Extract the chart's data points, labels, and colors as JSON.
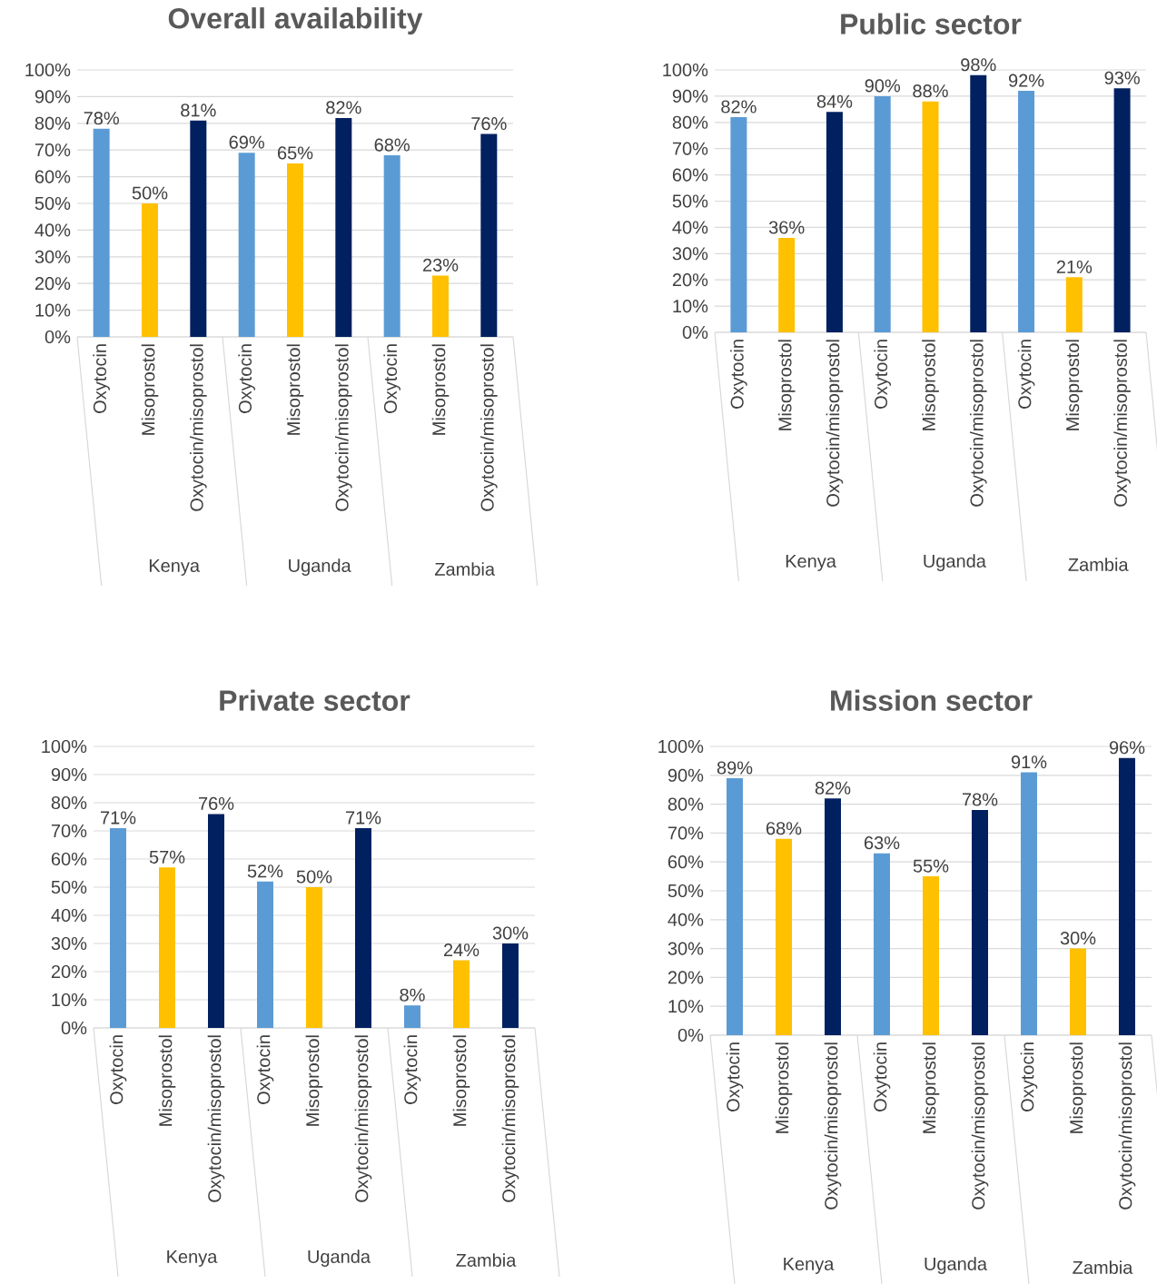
{
  "chart_data": [
    {
      "type": "bar",
      "title": "Overall availability",
      "categories": [
        "Oxytocin",
        "Misoprostol",
        "Oxytocin/misoprostol",
        "Oxytocin",
        "Misoprostol",
        "Oxytocin/misoprostol",
        "Oxytocin",
        "Misoprostol",
        "Oxytocin/misoprostol"
      ],
      "values": [
        78,
        50,
        81,
        69,
        65,
        82,
        68,
        23,
        76
      ],
      "value_labels": [
        "78%",
        "50%",
        "81%",
        "69%",
        "65%",
        "82%",
        "68%",
        "23%",
        "76%"
      ],
      "colors": [
        "#5b9bd5",
        "#ffc000",
        "#002060",
        "#5b9bd5",
        "#ffc000",
        "#002060",
        "#5b9bd5",
        "#ffc000",
        "#002060"
      ],
      "annotations": [
        "Kenya",
        "Uganda",
        "Zambia"
      ],
      "ylim": [
        0,
        100
      ],
      "yticks": [
        {
          "value": 0,
          "label": "0%"
        },
        {
          "value": 10,
          "label": "10%"
        },
        {
          "value": 20,
          "label": "20%"
        },
        {
          "value": 30,
          "label": "30%"
        },
        {
          "value": 40,
          "label": "40%"
        },
        {
          "value": 50,
          "label": "50%"
        },
        {
          "value": 60,
          "label": "60%"
        },
        {
          "value": 70,
          "label": "70%"
        },
        {
          "value": 80,
          "label": "80%"
        },
        {
          "value": 90,
          "label": "90%"
        },
        {
          "value": 100,
          "label": "100%"
        }
      ],
      "grid": "y"
    },
    {
      "type": "bar",
      "title": "Public sector",
      "categories": [
        "Oxytocin",
        "Misoprostol",
        "Oxytocin/misoprostol",
        "Oxytocin",
        "Misoprostol",
        "Oxytocin/misoprostol",
        "Oxytocin",
        "Misoprostol",
        "Oxytocin/misoprostol"
      ],
      "values": [
        82,
        36,
        84,
        90,
        88,
        98,
        92,
        21,
        93
      ],
      "value_labels": [
        "82%",
        "36%",
        "84%",
        "90%",
        "88%",
        "98%",
        "92%",
        "21%",
        "93%"
      ],
      "colors": [
        "#5b9bd5",
        "#ffc000",
        "#002060",
        "#5b9bd5",
        "#ffc000",
        "#002060",
        "#5b9bd5",
        "#ffc000",
        "#002060"
      ],
      "annotations": [
        "Kenya",
        "Uganda",
        "Zambia"
      ],
      "ylim": [
        0,
        100
      ],
      "yticks": [
        {
          "value": 0,
          "label": "0%"
        },
        {
          "value": 10,
          "label": "10%"
        },
        {
          "value": 20,
          "label": "20%"
        },
        {
          "value": 30,
          "label": "30%"
        },
        {
          "value": 40,
          "label": "40%"
        },
        {
          "value": 50,
          "label": "50%"
        },
        {
          "value": 60,
          "label": "60%"
        },
        {
          "value": 70,
          "label": "70%"
        },
        {
          "value": 80,
          "label": "80%"
        },
        {
          "value": 90,
          "label": "90%"
        },
        {
          "value": 100,
          "label": "100%"
        }
      ],
      "grid": "y"
    },
    {
      "type": "bar",
      "title": "Private sector",
      "categories": [
        "Oxytocin",
        "Misoprostol",
        "Oxytocin/misoprostol",
        "Oxytocin",
        "Misoprostol",
        "Oxytocin/misoprostol",
        "Oxytocin",
        "Misoprostol",
        "Oxytocin/misoprostol"
      ],
      "values": [
        71,
        57,
        76,
        52,
        50,
        71,
        8,
        24,
        30
      ],
      "value_labels": [
        "71%",
        "57%",
        "76%",
        "52%",
        "50%",
        "71%",
        "8%",
        "24%",
        "30%"
      ],
      "colors": [
        "#5b9bd5",
        "#ffc000",
        "#002060",
        "#5b9bd5",
        "#ffc000",
        "#002060",
        "#5b9bd5",
        "#ffc000",
        "#002060"
      ],
      "annotations": [
        "Kenya",
        "Uganda",
        "Zambia"
      ],
      "ylim": [
        0,
        100
      ],
      "yticks": [
        {
          "value": 0,
          "label": "0%"
        },
        {
          "value": 10,
          "label": "10%"
        },
        {
          "value": 20,
          "label": "20%"
        },
        {
          "value": 30,
          "label": "30%"
        },
        {
          "value": 40,
          "label": "40%"
        },
        {
          "value": 50,
          "label": "50%"
        },
        {
          "value": 60,
          "label": "60%"
        },
        {
          "value": 70,
          "label": "70%"
        },
        {
          "value": 80,
          "label": "80%"
        },
        {
          "value": 90,
          "label": "90%"
        },
        {
          "value": 100,
          "label": "100%"
        }
      ],
      "grid": "y"
    },
    {
      "type": "bar",
      "title": "Mission sector",
      "categories": [
        "Oxytocin",
        "Misoprostol",
        "Oxytocin/misoprostol",
        "Oxytocin",
        "Misoprostol",
        "Oxytocin/misoprostol",
        "Oxytocin",
        "Misoprostol",
        "Oxytocin/misoprostol"
      ],
      "values": [
        89,
        68,
        82,
        63,
        55,
        78,
        91,
        30,
        96
      ],
      "value_labels": [
        "89%",
        "68%",
        "82%",
        "63%",
        "55%",
        "78%",
        "91%",
        "30%",
        "96%"
      ],
      "colors": [
        "#5b9bd5",
        "#ffc000",
        "#002060",
        "#5b9bd5",
        "#ffc000",
        "#002060",
        "#5b9bd5",
        "#ffc000",
        "#002060"
      ],
      "annotations": [
        "Kenya",
        "Uganda",
        "Zambia"
      ],
      "ylim": [
        0,
        100
      ],
      "yticks": [
        {
          "value": 0,
          "label": "0%"
        },
        {
          "value": 10,
          "label": "10%"
        },
        {
          "value": 20,
          "label": "20%"
        },
        {
          "value": 30,
          "label": "30%"
        },
        {
          "value": 40,
          "label": "40%"
        },
        {
          "value": 50,
          "label": "50%"
        },
        {
          "value": 60,
          "label": "60%"
        },
        {
          "value": 70,
          "label": "70%"
        },
        {
          "value": 80,
          "label": "80%"
        },
        {
          "value": 90,
          "label": "90%"
        },
        {
          "value": 100,
          "label": "100%"
        }
      ],
      "grid": "y"
    }
  ]
}
